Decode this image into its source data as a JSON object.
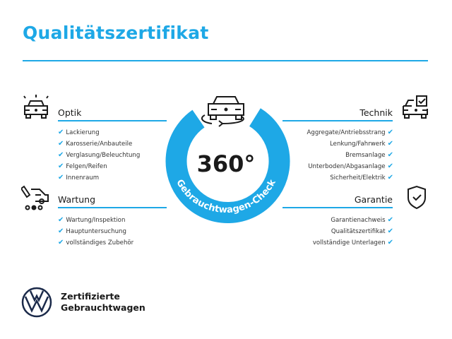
{
  "title": "Qualitätszertifikat",
  "accent_color": "#1ea8e6",
  "badge": {
    "value": "360°",
    "label": "Gebrauchtwagen-Check"
  },
  "sections": {
    "optik": {
      "title": "Optik",
      "icon": "car-lights-icon",
      "items": [
        "Lackierung",
        "Karosserie/Anbauteile",
        "Verglasung/Beleuchtung",
        "Felgen/Reifen",
        "Innenraum"
      ]
    },
    "wartung": {
      "title": "Wartung",
      "icon": "service-van-icon",
      "items": [
        "Wartung/Inspektion",
        "Hauptuntersuchung",
        "vollständiges Zubehör"
      ]
    },
    "technik": {
      "title": "Technik",
      "icon": "car-checkbox-icon",
      "items": [
        "Aggregate/Antriebsstrang",
        "Lenkung/Fahrwerk",
        "Bremsanlage",
        "Unterboden/Abgasanlage",
        "Sicherheit/Elektrik"
      ]
    },
    "garantie": {
      "title": "Garantie",
      "icon": "shield-check-icon",
      "items": [
        "Garantienachweis",
        "Qualitätszertifikat",
        "vollständige Unterlagen"
      ]
    }
  },
  "check_symbol": "✔",
  "footer": {
    "line1": "Zertifizierte",
    "line2": "Gebrauchtwagen",
    "logo": "vw-logo"
  }
}
